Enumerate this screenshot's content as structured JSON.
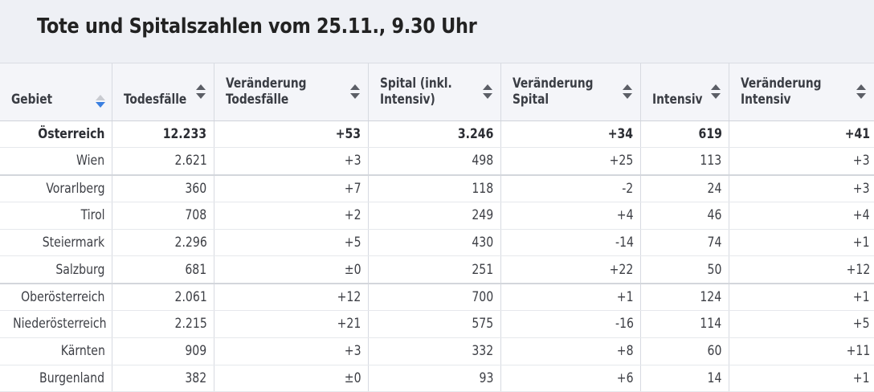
{
  "title": "Tote und Spitalszahlen vom 25.11., 9.30 Uhr",
  "columns": [
    {
      "label": "Gebiet",
      "sort": "descending-active"
    },
    {
      "label": "Todesfälle",
      "sort": "none"
    },
    {
      "label": "Veränderung Todesfälle",
      "sort": "none"
    },
    {
      "label": "Spital (inkl. Intensiv)",
      "sort": "none"
    },
    {
      "label": "Veränderung Spital",
      "sort": "none"
    },
    {
      "label": "Intensiv",
      "sort": "none"
    },
    {
      "label": "Veränderung Intensiv",
      "sort": "none"
    }
  ],
  "rows": [
    [
      "Österreich",
      "12.233",
      "+53",
      "3.246",
      "+34",
      "619",
      "+41"
    ],
    [
      "Wien",
      "2.621",
      "+3",
      "498",
      "+25",
      "113",
      "+3"
    ],
    [
      "Vorarlberg",
      "360",
      "+7",
      "118",
      "-2",
      "24",
      "+3"
    ],
    [
      "Tirol",
      "708",
      "+2",
      "249",
      "+4",
      "46",
      "+4"
    ],
    [
      "Steiermark",
      "2.296",
      "+5",
      "430",
      "-14",
      "74",
      "+1"
    ],
    [
      "Salzburg",
      "681",
      "±0",
      "251",
      "+22",
      "50",
      "+12"
    ],
    [
      "Oberösterreich",
      "2.061",
      "+12",
      "700",
      "+1",
      "124",
      "+1"
    ],
    [
      "Niederösterreich",
      "2.215",
      "+21",
      "575",
      "-16",
      "114",
      "+5"
    ],
    [
      "Kärnten",
      "909",
      "+3",
      "332",
      "+8",
      "60",
      "+11"
    ],
    [
      "Burgenland",
      "382",
      "±0",
      "93",
      "+6",
      "14",
      "+1"
    ]
  ],
  "colors": {
    "header_bg": "#eef0f5",
    "sort_active": "#3a7fe0",
    "text": "#333333"
  }
}
